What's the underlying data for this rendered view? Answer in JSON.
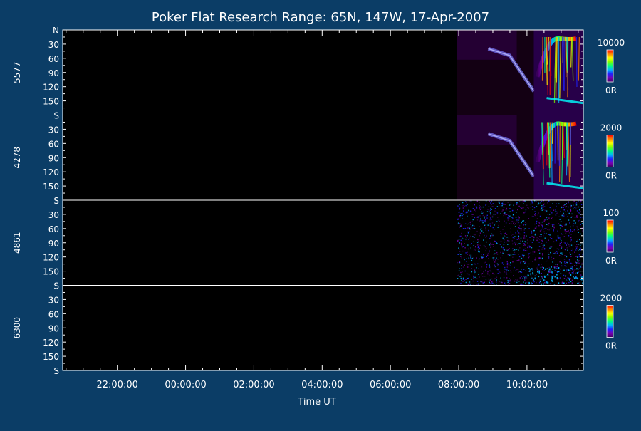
{
  "chart_data": {
    "type": "heatmap",
    "title": "Poker Flat Research Range: 65N, 147W, 17-Apr-2007",
    "xlabel": "Time UT",
    "x_ticks": [
      "22:00:00",
      "00:00:00",
      "02:00:00",
      "04:00:00",
      "06:00:00",
      "08:00:00",
      "10:00:00"
    ],
    "x_range_hours": [
      20.4,
      35.65
    ],
    "x_tick_hours": [
      22,
      24,
      26,
      28,
      30,
      32,
      34
    ],
    "y_ticks": [
      "N",
      "30",
      "60",
      "90",
      "120",
      "150",
      "S"
    ],
    "y_range_deg": [
      0,
      180
    ],
    "colormap": [
      "#000000",
      "#3a005a",
      "#7a00b4",
      "#2020ff",
      "#00b4ff",
      "#00ff80",
      "#80ff00",
      "#ffff00",
      "#ff8000",
      "#ff0000"
    ],
    "panels": [
      {
        "wavelength": "5577",
        "scale_max": "10000",
        "scale_min": "0R",
        "data_start_hour": 31.95,
        "signal": "strong"
      },
      {
        "wavelength": "4278",
        "scale_max": "2000",
        "scale_min": "0R",
        "data_start_hour": 31.95,
        "signal": "strong"
      },
      {
        "wavelength": "4861",
        "scale_max": "100",
        "scale_min": "0R",
        "data_start_hour": 31.95,
        "signal": "noisy"
      },
      {
        "wavelength": "6300",
        "scale_max": "2000",
        "scale_min": "0R",
        "data_start_hour": null,
        "signal": "none"
      }
    ]
  }
}
